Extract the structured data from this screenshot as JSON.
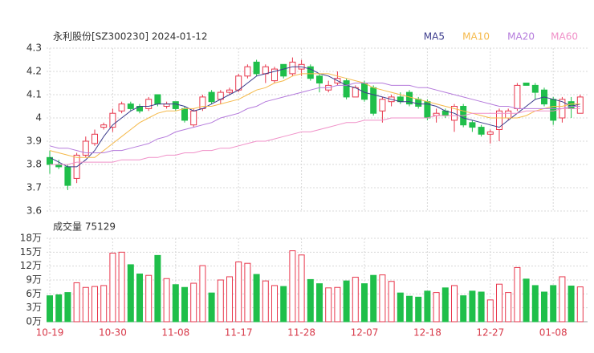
{
  "chart_data": [
    {
      "type": "candlestick",
      "title": "永利股份[SZ300230] 2024-01-12",
      "categories": [
        "10-19",
        null,
        null,
        null,
        null,
        null,
        null,
        "10-30",
        null,
        null,
        null,
        null,
        null,
        null,
        "11-08",
        null,
        null,
        null,
        null,
        null,
        null,
        "11-17",
        null,
        null,
        null,
        null,
        null,
        null,
        "11-28",
        null,
        null,
        null,
        null,
        null,
        null,
        "12-07",
        null,
        null,
        null,
        null,
        null,
        null,
        "12-18",
        null,
        null,
        null,
        null,
        null,
        null,
        "12-27",
        null,
        null,
        null,
        null,
        null,
        null,
        "01-08",
        null,
        null,
        null
      ],
      "open": [
        3.83,
        3.8,
        3.79,
        3.74,
        3.84,
        3.89,
        3.96,
        3.96,
        4.03,
        4.06,
        4.05,
        4.04,
        4.1,
        4.05,
        4.07,
        4.04,
        3.97,
        4.04,
        4.11,
        4.08,
        4.11,
        4.12,
        4.18,
        4.24,
        4.19,
        4.16,
        4.23,
        4.19,
        4.21,
        4.22,
        4.18,
        4.12,
        4.15,
        4.16,
        4.09,
        4.15,
        4.13,
        4.03,
        4.07,
        4.09,
        4.11,
        4.08,
        4.07,
        4.01,
        4.03,
        3.99,
        4.05,
        3.98,
        3.96,
        3.93,
        3.95,
        4.0,
        4.04,
        4.15,
        4.14,
        4.12,
        4.08,
        4.0,
        4.07,
        4.02
      ],
      "high": [
        3.86,
        3.82,
        3.8,
        3.85,
        3.92,
        3.95,
        3.98,
        4.04,
        4.07,
        4.07,
        4.06,
        4.09,
        4.1,
        4.07,
        4.07,
        4.05,
        4.04,
        4.1,
        4.12,
        4.12,
        4.13,
        4.19,
        4.23,
        4.25,
        4.23,
        4.22,
        4.23,
        4.26,
        4.25,
        4.23,
        4.19,
        4.16,
        4.2,
        4.17,
        4.14,
        4.16,
        4.14,
        4.09,
        4.1,
        4.11,
        4.12,
        4.09,
        4.08,
        4.04,
        4.04,
        4.06,
        4.06,
        3.99,
        3.97,
        3.95,
        4.04,
        4.04,
        4.15,
        4.15,
        4.15,
        4.13,
        4.09,
        4.09,
        4.09,
        4.1
      ],
      "low": [
        3.76,
        3.78,
        3.69,
        3.72,
        3.83,
        3.88,
        3.95,
        3.94,
        4.02,
        4.03,
        4.02,
        4.03,
        4.05,
        4.04,
        4.03,
        3.98,
        3.96,
        4.03,
        4.06,
        4.06,
        4.1,
        4.11,
        4.17,
        4.18,
        4.15,
        4.15,
        4.17,
        4.18,
        4.18,
        4.16,
        4.11,
        4.11,
        4.14,
        4.08,
        4.09,
        4.07,
        4.01,
        3.98,
        4.05,
        4.06,
        4.05,
        4.04,
        3.99,
        3.98,
        4.0,
        3.94,
        3.96,
        3.94,
        3.92,
        3.89,
        3.9,
        3.99,
        4.03,
        4.14,
        4.08,
        4.05,
        3.97,
        3.98,
        4.0,
        4.02
      ],
      "close": [
        3.8,
        3.79,
        3.71,
        3.84,
        3.9,
        3.93,
        3.97,
        4.02,
        4.06,
        4.04,
        4.03,
        4.08,
        4.06,
        4.06,
        4.04,
        3.99,
        4.03,
        4.09,
        4.07,
        4.11,
        4.12,
        4.18,
        4.22,
        4.19,
        4.22,
        4.21,
        4.18,
        4.24,
        4.23,
        4.17,
        4.15,
        4.14,
        4.17,
        4.09,
        4.13,
        4.08,
        4.02,
        4.08,
        4.09,
        4.07,
        4.06,
        4.05,
        4.0,
        4.02,
        4.01,
        4.05,
        3.97,
        3.96,
        3.93,
        3.94,
        4.03,
        4.03,
        4.14,
        4.14,
        4.11,
        4.06,
        3.99,
        4.08,
        4.04,
        4.09
      ],
      "up_color": "#e8374c",
      "down_color": "#1fbf4a",
      "series": [
        {
          "name": "MA5",
          "color": "#3c3c8c",
          "values": [
            3.83,
            3.81,
            3.79,
            3.79,
            3.82,
            3.86,
            3.92,
            3.97,
            4.0,
            4.03,
            4.05,
            4.05,
            4.06,
            4.06,
            4.06,
            4.05,
            4.03,
            4.04,
            4.06,
            4.08,
            4.1,
            4.12,
            4.15,
            4.18,
            4.19,
            4.2,
            4.21,
            4.22,
            4.22,
            4.21,
            4.19,
            4.18,
            4.16,
            4.14,
            4.13,
            4.11,
            4.1,
            4.09,
            4.08,
            4.07,
            4.07,
            4.06,
            4.06,
            4.05,
            4.03,
            4.02,
            4.0,
            3.99,
            3.98,
            3.97,
            3.96,
            3.99,
            4.02,
            4.05,
            4.08,
            4.09,
            4.08,
            4.07,
            4.05,
            4.06
          ]
        },
        {
          "name": "MA10",
          "color": "#f5b94a",
          "values": [
            3.86,
            3.85,
            3.84,
            3.83,
            3.83,
            3.83,
            3.86,
            3.89,
            3.92,
            3.95,
            3.98,
            4.0,
            4.02,
            4.03,
            4.03,
            4.04,
            4.04,
            4.05,
            4.05,
            4.06,
            4.07,
            4.08,
            4.1,
            4.12,
            4.13,
            4.15,
            4.16,
            4.18,
            4.19,
            4.19,
            4.19,
            4.19,
            4.18,
            4.17,
            4.16,
            4.15,
            4.13,
            4.12,
            4.11,
            4.1,
            4.09,
            4.08,
            4.07,
            4.06,
            4.05,
            4.04,
            4.03,
            4.02,
            4.01,
            4.0,
            4.0,
            4.0,
            4.0,
            4.01,
            4.03,
            4.04,
            4.05,
            4.05,
            4.06,
            4.06
          ]
        },
        {
          "name": "MA20",
          "color": "#b57bdc",
          "values": [
            3.88,
            3.87,
            3.87,
            3.86,
            3.85,
            3.85,
            3.85,
            3.86,
            3.86,
            3.87,
            3.88,
            3.89,
            3.91,
            3.92,
            3.94,
            3.95,
            3.96,
            3.97,
            3.98,
            4.0,
            4.01,
            4.02,
            4.04,
            4.05,
            4.07,
            4.08,
            4.09,
            4.1,
            4.11,
            4.12,
            4.13,
            4.13,
            4.14,
            4.14,
            4.15,
            4.15,
            4.15,
            4.15,
            4.14,
            4.14,
            4.14,
            4.13,
            4.13,
            4.12,
            4.11,
            4.1,
            4.09,
            4.08,
            4.07,
            4.06,
            4.05,
            4.05,
            4.04,
            4.04,
            4.04,
            4.04,
            4.04,
            4.04,
            4.05,
            4.05
          ]
        },
        {
          "name": "MA60",
          "color": "#f090c8",
          "values": [
            3.8,
            3.8,
            3.8,
            3.81,
            3.81,
            3.81,
            3.81,
            3.81,
            3.82,
            3.82,
            3.82,
            3.83,
            3.83,
            3.84,
            3.84,
            3.85,
            3.85,
            3.86,
            3.86,
            3.87,
            3.87,
            3.88,
            3.89,
            3.9,
            3.9,
            3.91,
            3.92,
            3.93,
            3.94,
            3.94,
            3.95,
            3.96,
            3.97,
            3.98,
            3.98,
            3.99,
            3.99,
            3.99,
            4.0,
            4.0,
            4.0,
            4.0,
            4.0,
            4.01,
            4.01,
            4.01,
            4.01,
            4.02,
            4.02,
            4.02,
            4.02,
            4.02,
            4.02,
            4.03,
            4.03,
            4.03,
            4.03,
            4.04,
            4.04,
            4.04
          ]
        }
      ],
      "ylim": [
        3.6,
        4.3
      ],
      "yticks": [
        3.6,
        3.7,
        3.8,
        3.9,
        4,
        4.1,
        4.2,
        4.3
      ],
      "grid": true
    },
    {
      "type": "bar",
      "title": "成交量 75129",
      "values": [
        56000,
        58000,
        63000,
        84000,
        74000,
        76000,
        78000,
        148000,
        150000,
        123000,
        103000,
        100000,
        143000,
        93000,
        80000,
        74000,
        83000,
        121000,
        62000,
        90000,
        97000,
        129000,
        126000,
        102000,
        88000,
        78000,
        76000,
        153000,
        144000,
        91000,
        82000,
        73000,
        74000,
        88000,
        96000,
        82000,
        100000,
        101000,
        87000,
        62000,
        55000,
        53000,
        66000,
        63000,
        73000,
        78000,
        56000,
        66000,
        64000,
        47000,
        81000,
        63000,
        117000,
        92000,
        78000,
        64000,
        78000,
        97000,
        77000,
        75129
      ],
      "ylim": [
        0,
        180000
      ],
      "yticks": [
        {
          "value": 0,
          "label": "0万"
        },
        {
          "value": 30000,
          "label": "3万"
        },
        {
          "value": 60000,
          "label": "6万"
        },
        {
          "value": 90000,
          "label": "9万"
        },
        {
          "value": 120000,
          "label": "12万"
        },
        {
          "value": 150000,
          "label": "15万"
        },
        {
          "value": 180000,
          "label": "18万"
        }
      ],
      "grid": true
    }
  ]
}
